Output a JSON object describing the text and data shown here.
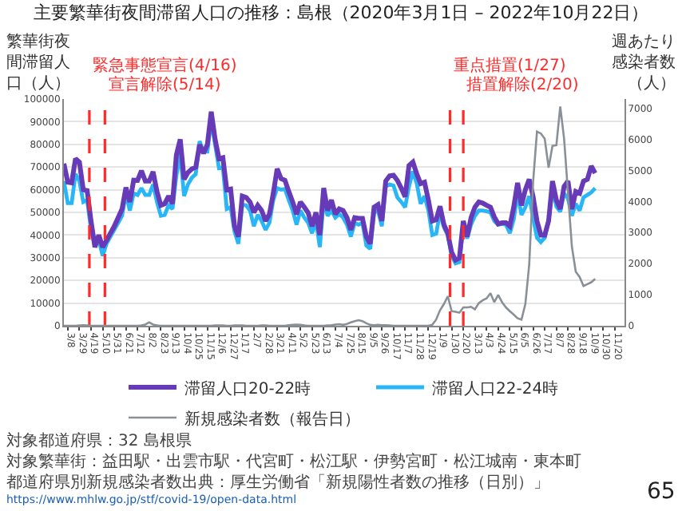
{
  "chart_data": {
    "type": "line",
    "title": "主要繁華街夜間滞留人口の推移：島根（2020年3月1日 – 2022年10月22日）",
    "ylabel": "繁華街夜間滞留人口（人）",
    "y2label": "週あたり感染者数（人）",
    "x": [
      "2020-03-01",
      "2020-03-08",
      "2020-03-15",
      "2020-03-22",
      "2020-03-29",
      "2020-04-05",
      "2020-04-12",
      "2020-04-19",
      "2020-04-26",
      "2020-05-03",
      "2020-05-10",
      "2020-05-17",
      "2020-05-24",
      "2020-05-31",
      "2020-06-07",
      "2020-06-14",
      "2020-06-21",
      "2020-06-28",
      "2020-07-05",
      "2020-07-12",
      "2020-07-19",
      "2020-07-26",
      "2020-08-02",
      "2020-08-09",
      "2020-08-16",
      "2020-08-23",
      "2020-08-30",
      "2020-09-06",
      "2020-09-13",
      "2020-09-20",
      "2020-09-27",
      "2020-10-04",
      "2020-10-11",
      "2020-10-18",
      "2020-10-25",
      "2020-11-01",
      "2020-11-08",
      "2020-11-15",
      "2020-11-22",
      "2020-11-29",
      "2020-12-06",
      "2020-12-13",
      "2020-12-20",
      "2020-12-27",
      "2021-01-03",
      "2021-01-10",
      "2021-01-17",
      "2021-01-24",
      "2021-01-31",
      "2021-02-07",
      "2021-02-14",
      "2021-02-21",
      "2021-02-28",
      "2021-03-07",
      "2021-03-14",
      "2021-03-21",
      "2021-03-28",
      "2021-04-04",
      "2021-04-11",
      "2021-04-18",
      "2021-04-25",
      "2021-05-02",
      "2021-05-09",
      "2021-05-16",
      "2021-05-23",
      "2021-05-30",
      "2021-06-06",
      "2021-06-13",
      "2021-06-20",
      "2021-06-27",
      "2021-07-04",
      "2021-07-11",
      "2021-07-18",
      "2021-07-25",
      "2021-08-01",
      "2021-08-08",
      "2021-08-15",
      "2021-08-22",
      "2021-08-29",
      "2021-09-05",
      "2021-09-12",
      "2021-09-19",
      "2021-09-26",
      "2021-10-03",
      "2021-10-10",
      "2021-10-17",
      "2021-10-24",
      "2021-10-31",
      "2021-11-07",
      "2021-11-14",
      "2021-11-21",
      "2021-11-28",
      "2021-12-05",
      "2021-12-12",
      "2021-12-19",
      "2021-12-26",
      "2022-01-02",
      "2022-01-09",
      "2022-01-16",
      "2022-01-23",
      "2022-01-30",
      "2022-02-06",
      "2022-02-13",
      "2022-02-20",
      "2022-02-27",
      "2022-03-06",
      "2022-03-13",
      "2022-03-20",
      "2022-03-27",
      "2022-04-03",
      "2022-04-10",
      "2022-04-17",
      "2022-04-24",
      "2022-05-01",
      "2022-05-08",
      "2022-05-15",
      "2022-05-22",
      "2022-05-29",
      "2022-06-05",
      "2022-06-12",
      "2022-06-19",
      "2022-06-26",
      "2022-07-03",
      "2022-07-10",
      "2022-07-17",
      "2022-07-24",
      "2022-07-31",
      "2022-08-07",
      "2022-08-14",
      "2022-08-21",
      "2022-08-28",
      "2022-09-04",
      "2022-09-11",
      "2022-09-18",
      "2022-09-25",
      "2022-10-02",
      "2022-10-09",
      "2022-10-16"
    ],
    "xlim": [
      "2020-03-01",
      "2022-12-08"
    ],
    "xticks": [
      {
        "value": "2020-03-08",
        "label": "3/8"
      },
      {
        "value": "2020-03-29",
        "label": "3/29"
      },
      {
        "value": "2020-04-19",
        "label": "4/19"
      },
      {
        "value": "2020-05-10",
        "label": "5/10"
      },
      {
        "value": "2020-05-31",
        "label": "5/31"
      },
      {
        "value": "2020-06-21",
        "label": "6/21"
      },
      {
        "value": "2020-07-12",
        "label": "7/12"
      },
      {
        "value": "2020-08-02",
        "label": "8/2"
      },
      {
        "value": "2020-08-23",
        "label": "8/23"
      },
      {
        "value": "2020-09-13",
        "label": "9/13"
      },
      {
        "value": "2020-10-04",
        "label": "10/4"
      },
      {
        "value": "2020-10-25",
        "label": "10/25"
      },
      {
        "value": "2020-11-15",
        "label": "11/15"
      },
      {
        "value": "2020-12-06",
        "label": "12/6"
      },
      {
        "value": "2020-12-27",
        "label": "12/27"
      },
      {
        "value": "2021-01-17",
        "label": "1/17"
      },
      {
        "value": "2021-02-07",
        "label": "2/7"
      },
      {
        "value": "2021-02-28",
        "label": "2/28"
      },
      {
        "value": "2021-03-21",
        "label": "3/21"
      },
      {
        "value": "2021-04-11",
        "label": "4/11"
      },
      {
        "value": "2021-05-02",
        "label": "5/2"
      },
      {
        "value": "2021-05-23",
        "label": "5/23"
      },
      {
        "value": "2021-06-13",
        "label": "6/13"
      },
      {
        "value": "2021-07-04",
        "label": "7/4"
      },
      {
        "value": "2021-07-25",
        "label": "7/25"
      },
      {
        "value": "2021-08-15",
        "label": "8/15"
      },
      {
        "value": "2021-09-05",
        "label": "9/5"
      },
      {
        "value": "2021-09-26",
        "label": "9/26"
      },
      {
        "value": "2021-10-17",
        "label": "10/17"
      },
      {
        "value": "2021-11-07",
        "label": "11/7"
      },
      {
        "value": "2021-11-28",
        "label": "11/28"
      },
      {
        "value": "2021-12-19",
        "label": "12/19"
      },
      {
        "value": "2022-01-09",
        "label": "1/9"
      },
      {
        "value": "2022-01-30",
        "label": "1/30"
      },
      {
        "value": "2022-02-20",
        "label": "2/20"
      },
      {
        "value": "2022-03-13",
        "label": "3/13"
      },
      {
        "value": "2022-04-03",
        "label": "4/3"
      },
      {
        "value": "2022-04-24",
        "label": "4/24"
      },
      {
        "value": "2022-05-15",
        "label": "5/15"
      },
      {
        "value": "2022-06-05",
        "label": "6/5"
      },
      {
        "value": "2022-06-26",
        "label": "6/26"
      },
      {
        "value": "2022-07-17",
        "label": "7/17"
      },
      {
        "value": "2022-08-07",
        "label": "8/7"
      },
      {
        "value": "2022-08-28",
        "label": "8/28"
      },
      {
        "value": "2022-09-18",
        "label": "9/18"
      },
      {
        "value": "2022-10-09",
        "label": "10/9"
      },
      {
        "value": "2022-10-30",
        "label": "10/30"
      },
      {
        "value": "2022-11-20",
        "label": "11/20"
      }
    ],
    "ylim": [
      0,
      100000
    ],
    "yticks": [
      0,
      10000,
      20000,
      30000,
      40000,
      50000,
      60000,
      70000,
      80000,
      90000,
      100000
    ],
    "y2lim": [
      0,
      7300
    ],
    "y2ticks": [
      0,
      1000,
      2000,
      3000,
      4000,
      5000,
      6000,
      7000
    ],
    "series": [
      {
        "name": "滞留人口20-22時",
        "color": "#673ab7",
        "values": [
          71500,
          63300,
          63000,
          73700,
          72200,
          60000,
          59600,
          46200,
          34700,
          40000,
          34700,
          37700,
          40800,
          43900,
          47700,
          51500,
          61000,
          54600,
          64200,
          64100,
          68400,
          63800,
          63800,
          67900,
          59200,
          53100,
          53800,
          57200,
          53800,
          75300,
          82200,
          64600,
          67600,
          69200,
          69900,
          79900,
          76000,
          79900,
          94400,
          82200,
          73700,
          74100,
          60000,
          60300,
          43900,
          39300,
          57200,
          56600,
          54600,
          50000,
          53100,
          50800,
          46200,
          49200,
          58400,
          69200,
          64900,
          64200,
          59200,
          54600,
          49200,
          54600,
          52300,
          49800,
          43900,
          50000,
          40000,
          60700,
          50800,
          55400,
          49200,
          51500,
          50800,
          47700,
          42300,
          47700,
          47400,
          47400,
          39300,
          36200,
          52300,
          53400,
          46200,
          63800,
          66100,
          66400,
          64100,
          60700,
          56900,
          70700,
          72200,
          66900,
          62700,
          63300,
          55400,
          46200,
          46800,
          52700,
          44600,
          40800,
          32400,
          29000,
          29900,
          46200,
          39300,
          47700,
          52300,
          54600,
          54100,
          53100,
          52300,
          48000,
          44900,
          45400,
          45400,
          43900,
          52300,
          63000,
          53100,
          60000,
          64600,
          56900,
          46200,
          40000,
          40000,
          46200,
          63800,
          55400,
          51500,
          61500,
          63800,
          51500,
          59200,
          58400,
          63800,
          64600,
          70400,
          67300
        ]
      },
      {
        "name": "滞留人口22-24時",
        "color": "#29b6f6",
        "values": [
          63800,
          54100,
          54100,
          66900,
          63800,
          54600,
          55400,
          42300,
          35400,
          37700,
          30800,
          36200,
          39300,
          42300,
          45400,
          48500,
          58400,
          50800,
          58400,
          57700,
          60700,
          57700,
          57700,
          62300,
          54600,
          48500,
          48900,
          53100,
          51500,
          66100,
          76000,
          57200,
          62300,
          65300,
          66900,
          81400,
          76800,
          76800,
          90600,
          79900,
          69500,
          69900,
          51500,
          52300,
          41600,
          36200,
          53400,
          53100,
          50800,
          43900,
          48900,
          46200,
          42300,
          45400,
          55400,
          60700,
          60000,
          60300,
          55400,
          50800,
          44600,
          50800,
          47700,
          45400,
          40800,
          46200,
          34700,
          55400,
          48500,
          50800,
          47700,
          49200,
          47700,
          44600,
          39300,
          45400,
          44600,
          45400,
          35400,
          33900,
          50000,
          50800,
          43900,
          61500,
          62300,
          61800,
          56600,
          54600,
          52300,
          61500,
          68100,
          62700,
          53800,
          57200,
          50800,
          40000,
          40600,
          50000,
          43400,
          40000,
          30800,
          27500,
          28100,
          43900,
          38500,
          44600,
          48500,
          50800,
          50800,
          50500,
          50000,
          46200,
          44600,
          44900,
          44600,
          40800,
          46900,
          58400,
          48900,
          52300,
          57200,
          47700,
          38800,
          36900,
          38800,
          46200,
          60400,
          52600,
          50300,
          58400,
          56100,
          48500,
          53800,
          50800,
          56600,
          57700,
          58800,
          60700
        ]
      },
      {
        "name": "新規感染者数（報告日）",
        "color": "#8a9098",
        "axis": "y2",
        "values": [
          0,
          0,
          0,
          0,
          10,
          20,
          10,
          0,
          0,
          0,
          0,
          0,
          0,
          0,
          0,
          0,
          0,
          0,
          0,
          0,
          10,
          40,
          110,
          40,
          10,
          0,
          0,
          0,
          0,
          0,
          0,
          0,
          0,
          0,
          0,
          0,
          0,
          0,
          0,
          10,
          10,
          10,
          0,
          0,
          10,
          10,
          10,
          0,
          0,
          0,
          0,
          10,
          10,
          0,
          0,
          0,
          0,
          0,
          20,
          30,
          40,
          30,
          10,
          0,
          0,
          0,
          0,
          0,
          10,
          20,
          40,
          50,
          30,
          60,
          110,
          150,
          180,
          150,
          80,
          30,
          20,
          30,
          20,
          20,
          10,
          0,
          0,
          0,
          0,
          0,
          0,
          0,
          0,
          0,
          0,
          30,
          200,
          500,
          700,
          950,
          470,
          450,
          420,
          590,
          590,
          610,
          530,
          730,
          820,
          880,
          1050,
          760,
          990,
          760,
          590,
          470,
          360,
          240,
          200,
          700,
          1970,
          4630,
          6250,
          6190,
          6020,
          5090,
          5790,
          5810,
          7060,
          6020,
          4280,
          2550,
          1740,
          1570,
          1280,
          1340,
          1400,
          1510
        ]
      }
    ],
    "ref_lines": [
      {
        "axis": "x",
        "value": "2020-04-16",
        "label": "緊急事態宣言(4/16)",
        "color": "#ff2a2a",
        "line_style": "dashed"
      },
      {
        "axis": "x",
        "value": "2020-05-14",
        "label": "宣言解除(5/14)",
        "color": "#ff2a2a",
        "line_style": "dashed"
      },
      {
        "axis": "x",
        "value": "2022-01-27",
        "label": "重点措置(1/27)",
        "color": "#ff2a2a",
        "line_style": "dashed"
      },
      {
        "axis": "x",
        "value": "2022-02-20",
        "label": "措置解除(2/20)",
        "color": "#ff2a2a",
        "line_style": "dashed"
      }
    ],
    "legend": "bottom",
    "grid": "y",
    "annotations": [
      "対象都道府県：32 島根県",
      "対象繁華街：益田駅・出雲市駅・代宮町・松江駅・伊勢宮町・松江城南・東本町",
      "都道府県別新規感染者数出典：厚生労働省「新規陽性者数の推移（日別）」",
      "https://www.mhlw.go.jp/stf/covid-19/open-data.html",
      "65"
    ]
  }
}
